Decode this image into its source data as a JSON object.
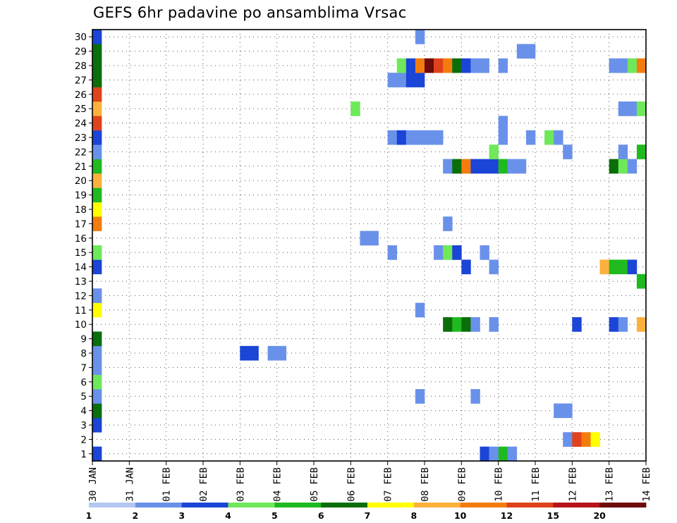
{
  "chart_data": {
    "type": "heatmap",
    "title": "GEFS 6hr padavine po ansamblima Vrsac",
    "xlabel": "",
    "ylabel": "",
    "x_tick_labels": [
      "30 JAN",
      "31 JAN",
      "01 FEB",
      "02 FEB",
      "03 FEB",
      "04 FEB",
      "05 FEB",
      "06 FEB",
      "07 FEB",
      "08 FEB",
      "09 FEB",
      "10 FEB",
      "11 FEB",
      "12 FEB",
      "13 FEB",
      "14 FEB"
    ],
    "y_tick_labels": [
      "1",
      "2",
      "3",
      "4",
      "5",
      "6",
      "7",
      "8",
      "9",
      "10",
      "11",
      "12",
      "13",
      "14",
      "15",
      "16",
      "17",
      "18",
      "19",
      "20",
      "21",
      "22",
      "23",
      "24",
      "25",
      "26",
      "27",
      "28",
      "29",
      "30"
    ],
    "xlim": [
      0,
      60
    ],
    "ylim": [
      0.5,
      30.5
    ],
    "time_step_hours": 6,
    "grid": true,
    "colorbar": {
      "position": "bottom",
      "labels": [
        "1",
        "2",
        "3",
        "4",
        "5",
        "6",
        "7",
        "8",
        "10",
        "12",
        "15",
        "20"
      ],
      "colors": [
        "#b4c7f3",
        "#6a91ea",
        "#1a45d6",
        "#6fe85a",
        "#1fba1f",
        "#0a6e0a",
        "#ffff00",
        "#fbb13c",
        "#f47c0e",
        "#e0421c",
        "#b8141a",
        "#6e0b0b"
      ]
    },
    "series": [
      {
        "member": 1,
        "steps": [
          [
            0,
            2
          ],
          [
            42,
            2
          ],
          [
            43,
            1
          ],
          [
            44,
            4
          ],
          [
            45,
            1
          ]
        ]
      },
      {
        "member": 2,
        "steps": [
          [
            51,
            1
          ],
          [
            52,
            9
          ],
          [
            53,
            8
          ],
          [
            54,
            6
          ]
        ]
      },
      {
        "member": 3,
        "steps": [
          [
            0,
            2
          ]
        ]
      },
      {
        "member": 4,
        "steps": [
          [
            0,
            5
          ],
          [
            50,
            1
          ],
          [
            51,
            1
          ]
        ]
      },
      {
        "member": 5,
        "steps": [
          [
            0,
            1
          ],
          [
            35,
            1
          ],
          [
            41,
            1
          ]
        ]
      },
      {
        "member": 6,
        "steps": [
          [
            0,
            3
          ]
        ]
      },
      {
        "member": 7,
        "steps": [
          [
            0,
            1
          ]
        ]
      },
      {
        "member": 8,
        "steps": [
          [
            0,
            1
          ],
          [
            16,
            2
          ],
          [
            17,
            2
          ],
          [
            19,
            1
          ],
          [
            20,
            1
          ]
        ]
      },
      {
        "member": 9,
        "steps": [
          [
            0,
            5
          ]
        ]
      },
      {
        "member": 10,
        "steps": [
          [
            38,
            5
          ],
          [
            39,
            4
          ],
          [
            40,
            5
          ],
          [
            41,
            1
          ],
          [
            43,
            1
          ],
          [
            52,
            2
          ],
          [
            56,
            2
          ],
          [
            57,
            1
          ],
          [
            59,
            7
          ]
        ]
      },
      {
        "member": 11,
        "steps": [
          [
            0,
            6
          ],
          [
            35,
            1
          ]
        ]
      },
      {
        "member": 12,
        "steps": [
          [
            0,
            1
          ]
        ]
      },
      {
        "member": 13,
        "steps": [
          [
            59,
            4
          ]
        ]
      },
      {
        "member": 14,
        "steps": [
          [
            0,
            2
          ],
          [
            40,
            2
          ],
          [
            43,
            1
          ],
          [
            55,
            7
          ],
          [
            56,
            4
          ],
          [
            57,
            4
          ],
          [
            58,
            2
          ]
        ]
      },
      {
        "member": 15,
        "steps": [
          [
            0,
            3
          ],
          [
            32,
            1
          ],
          [
            37,
            1
          ],
          [
            38,
            3
          ],
          [
            39,
            2
          ],
          [
            42,
            1
          ]
        ]
      },
      {
        "member": 16,
        "steps": [
          [
            29,
            1
          ],
          [
            30,
            1
          ]
        ]
      },
      {
        "member": 17,
        "steps": [
          [
            0,
            8
          ],
          [
            38,
            1
          ]
        ]
      },
      {
        "member": 18,
        "steps": [
          [
            0,
            6
          ]
        ]
      },
      {
        "member": 19,
        "steps": [
          [
            0,
            4
          ]
        ]
      },
      {
        "member": 20,
        "steps": [
          [
            0,
            7
          ]
        ]
      },
      {
        "member": 21,
        "steps": [
          [
            0,
            4
          ],
          [
            38,
            1
          ],
          [
            39,
            5
          ],
          [
            40,
            8
          ],
          [
            41,
            2
          ],
          [
            42,
            2
          ],
          [
            43,
            2
          ],
          [
            44,
            4
          ],
          [
            45,
            1
          ],
          [
            46,
            1
          ],
          [
            56,
            5
          ],
          [
            57,
            3
          ],
          [
            58,
            1
          ]
        ]
      },
      {
        "member": 22,
        "steps": [
          [
            0,
            1
          ],
          [
            43,
            3
          ],
          [
            51,
            1
          ],
          [
            57,
            1
          ],
          [
            59,
            4
          ]
        ]
      },
      {
        "member": 23,
        "steps": [
          [
            0,
            2
          ],
          [
            32,
            1
          ],
          [
            33,
            2
          ],
          [
            34,
            1
          ],
          [
            35,
            1
          ],
          [
            36,
            1
          ],
          [
            37,
            1
          ],
          [
            44,
            1
          ],
          [
            47,
            1
          ],
          [
            49,
            3
          ],
          [
            50,
            1
          ]
        ]
      },
      {
        "member": 24,
        "steps": [
          [
            0,
            9
          ],
          [
            44,
            1
          ]
        ]
      },
      {
        "member": 25,
        "steps": [
          [
            0,
            7
          ],
          [
            28,
            3
          ],
          [
            57,
            1
          ],
          [
            58,
            1
          ],
          [
            59,
            3
          ]
        ]
      },
      {
        "member": 26,
        "steps": [
          [
            0,
            9
          ]
        ]
      },
      {
        "member": 27,
        "steps": [
          [
            0,
            5
          ],
          [
            32,
            1
          ],
          [
            33,
            1
          ],
          [
            34,
            2
          ],
          [
            35,
            2
          ]
        ]
      },
      {
        "member": 28,
        "steps": [
          [
            0,
            5
          ],
          [
            33,
            3
          ],
          [
            34,
            2
          ],
          [
            35,
            8
          ],
          [
            36,
            11
          ],
          [
            37,
            9
          ],
          [
            38,
            8
          ],
          [
            39,
            5
          ],
          [
            40,
            2
          ],
          [
            41,
            1
          ],
          [
            42,
            1
          ],
          [
            44,
            1
          ],
          [
            56,
            1
          ],
          [
            57,
            1
          ],
          [
            58,
            3
          ],
          [
            59,
            8
          ]
        ]
      },
      {
        "member": 29,
        "steps": [
          [
            0,
            5
          ],
          [
            46,
            1
          ],
          [
            47,
            1
          ]
        ]
      },
      {
        "member": 30,
        "steps": [
          [
            0,
            2
          ],
          [
            35,
            1
          ]
        ]
      }
    ]
  }
}
